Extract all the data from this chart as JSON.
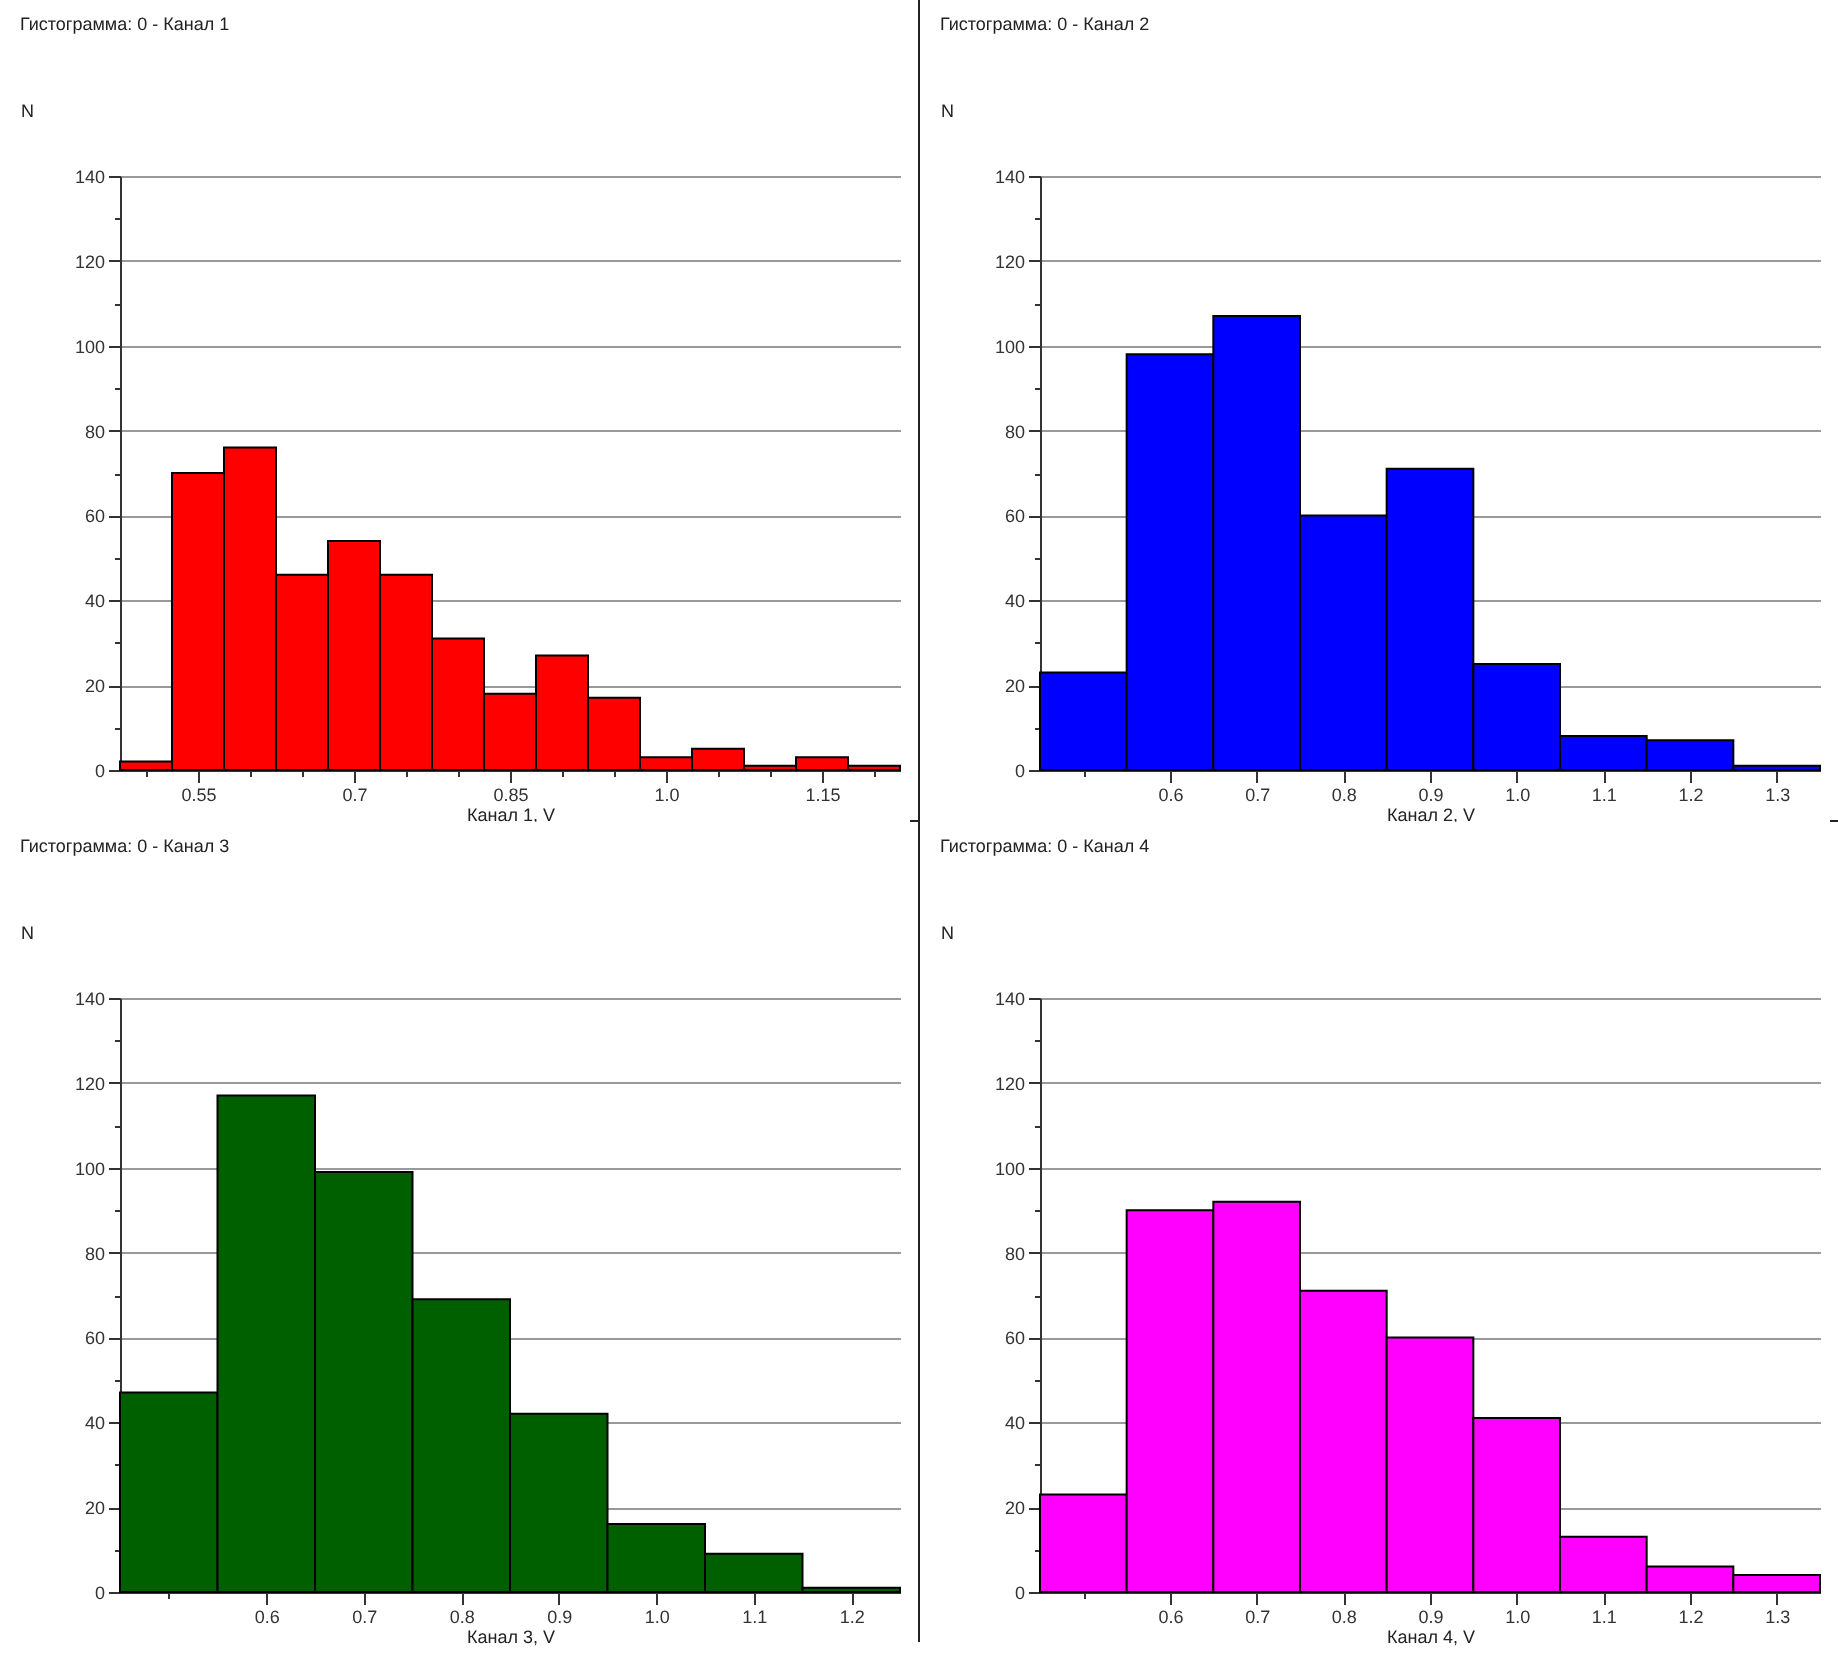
{
  "chart_data": [
    {
      "type": "histogram",
      "title": "Гистограмма: 0 - Канал 1",
      "xlabel": "Канал 1, V",
      "ylabel": "N",
      "color": "#ff0000",
      "bins": [
        0.475,
        0.525,
        0.575,
        0.625,
        0.675,
        0.725,
        0.775,
        0.825,
        0.875,
        0.925,
        0.975,
        1.025,
        1.075,
        1.125,
        1.175,
        1.225
      ],
      "values": [
        2,
        70,
        76,
        46,
        54,
        46,
        31,
        18,
        27,
        17,
        3,
        5,
        1,
        3,
        1
      ],
      "xlim": [
        0.475,
        1.225
      ],
      "xticks": [
        {
          "value": 0.5,
          "label": null
        },
        0.55,
        {
          "value": 0.6,
          "label": null
        },
        {
          "value": 0.65,
          "label": null
        },
        0.7,
        {
          "value": 0.75,
          "label": null
        },
        {
          "value": 0.8,
          "label": null
        },
        0.85,
        {
          "value": 0.9,
          "label": null
        },
        {
          "value": 0.95,
          "label": null
        },
        {
          "value": 1,
          "label": "1.0"
        },
        {
          "value": 1.05,
          "label": null
        },
        {
          "value": 1.1,
          "label": null
        },
        1.15,
        {
          "value": 1.2,
          "label": null
        }
      ],
      "ylim": [
        0,
        140
      ],
      "yticks": [
        0,
        {
          "value": 10,
          "label": null
        },
        20,
        {
          "value": 30,
          "label": null
        },
        40,
        {
          "value": 50,
          "label": null
        },
        60,
        {
          "value": 70,
          "label": null
        },
        80,
        {
          "value": 90,
          "label": null
        },
        100,
        {
          "value": 110,
          "label": null
        },
        120,
        {
          "value": 130,
          "label": null
        },
        140
      ],
      "grid": "y"
    },
    {
      "type": "histogram",
      "title": "Гистограмма: 0 - Канал 2",
      "xlabel": "Канал 2, V",
      "ylabel": "N",
      "color": "#0000ff",
      "bins": [
        0.45,
        0.55,
        0.65,
        0.75,
        0.85,
        0.95,
        1.05,
        1.15,
        1.25,
        1.35
      ],
      "values": [
        23,
        98,
        107,
        60,
        71,
        25,
        8,
        7,
        1
      ],
      "xlim": [
        0.45,
        1.35
      ],
      "xticks": [
        {
          "value": 0.5,
          "label": null
        },
        0.6,
        0.7,
        0.8,
        0.9,
        {
          "value": 1,
          "label": "1.0"
        },
        1.1,
        1.2,
        1.3
      ],
      "ylim": [
        0,
        140
      ],
      "yticks": [
        0,
        {
          "value": 10,
          "label": null
        },
        20,
        {
          "value": 30,
          "label": null
        },
        40,
        {
          "value": 50,
          "label": null
        },
        60,
        {
          "value": 70,
          "label": null
        },
        80,
        {
          "value": 90,
          "label": null
        },
        100,
        {
          "value": 110,
          "label": null
        },
        120,
        {
          "value": 130,
          "label": null
        },
        140
      ],
      "grid": "y"
    },
    {
      "type": "histogram",
      "title": "Гистограмма: 0 - Канал 3",
      "xlabel": "Канал 3, V",
      "ylabel": "N",
      "color": "#006000",
      "bins": [
        0.45,
        0.55,
        0.65,
        0.75,
        0.85,
        0.95,
        1.05,
        1.15,
        1.25
      ],
      "values": [
        47,
        117,
        99,
        69,
        42,
        16,
        9,
        1
      ],
      "xlim": [
        0.45,
        1.25
      ],
      "xticks": [
        {
          "value": 0.5,
          "label": null
        },
        0.6,
        0.7,
        0.8,
        0.9,
        {
          "value": 1,
          "label": "1.0"
        },
        1.1,
        1.2
      ],
      "ylim": [
        0,
        140
      ],
      "yticks": [
        0,
        {
          "value": 10,
          "label": null
        },
        20,
        {
          "value": 30,
          "label": null
        },
        40,
        {
          "value": 50,
          "label": null
        },
        60,
        {
          "value": 70,
          "label": null
        },
        80,
        {
          "value": 90,
          "label": null
        },
        100,
        {
          "value": 110,
          "label": null
        },
        120,
        {
          "value": 130,
          "label": null
        },
        140
      ],
      "grid": "y"
    },
    {
      "type": "histogram",
      "title": "Гистограмма: 0 - Канал 4",
      "xlabel": "Канал 4, V",
      "ylabel": "N",
      "color": "#ff00ff",
      "bins": [
        0.45,
        0.55,
        0.65,
        0.75,
        0.85,
        0.95,
        1.05,
        1.15,
        1.25,
        1.35
      ],
      "values": [
        23,
        90,
        92,
        71,
        60,
        41,
        13,
        6,
        4
      ],
      "xlim": [
        0.45,
        1.35
      ],
      "xticks": [
        {
          "value": 0.5,
          "label": null
        },
        0.6,
        0.7,
        0.8,
        0.9,
        {
          "value": 1,
          "label": "1.0"
        },
        1.1,
        1.2,
        1.3
      ],
      "ylim": [
        0,
        140
      ],
      "yticks": [
        0,
        {
          "value": 10,
          "label": null
        },
        20,
        {
          "value": 30,
          "label": null
        },
        40,
        {
          "value": 50,
          "label": null
        },
        60,
        {
          "value": 70,
          "label": null
        },
        80,
        {
          "value": 90,
          "label": null
        },
        100,
        {
          "value": 110,
          "label": null
        },
        120,
        {
          "value": 130,
          "label": null
        },
        140
      ],
      "grid": "y"
    }
  ]
}
